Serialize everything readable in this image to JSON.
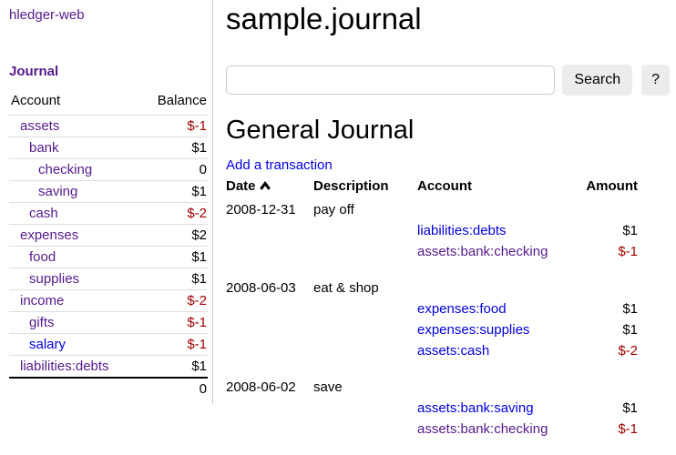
{
  "app": {
    "title": "hledger-web"
  },
  "colors": {
    "link": "#0000dd",
    "link_visited": "#551a8b",
    "negative": "#a00000"
  },
  "sidebar": {
    "journal_label": "Journal",
    "accounts_table": {
      "account_header": "Account",
      "balance_header": "Balance",
      "rows": [
        {
          "name": "assets",
          "indent": 0,
          "balance": "$-1",
          "visited": true
        },
        {
          "name": "bank",
          "indent": 1,
          "balance": "$1",
          "visited": true
        },
        {
          "name": "checking",
          "indent": 2,
          "balance": "0",
          "visited": true
        },
        {
          "name": "saving",
          "indent": 2,
          "balance": "$1",
          "visited": true
        },
        {
          "name": "cash",
          "indent": 1,
          "balance": "$-2",
          "visited": true
        },
        {
          "name": "expenses",
          "indent": 0,
          "balance": "$2",
          "visited": true
        },
        {
          "name": "food",
          "indent": 1,
          "balance": "$1",
          "visited": true
        },
        {
          "name": "supplies",
          "indent": 1,
          "balance": "$1",
          "visited": true
        },
        {
          "name": "income",
          "indent": 0,
          "balance": "$-2",
          "visited": true
        },
        {
          "name": "gifts",
          "indent": 1,
          "balance": "$-1",
          "visited": true
        },
        {
          "name": "salary",
          "indent": 1,
          "balance": "$-1",
          "visited": false
        },
        {
          "name": "liabilities:debts",
          "indent": 0,
          "balance": "$1",
          "visited": true
        }
      ],
      "total": "0"
    }
  },
  "main": {
    "title": "sample.journal",
    "search": {
      "value": "",
      "placeholder": "",
      "button_label": "Search",
      "help_label": "?"
    },
    "journal": {
      "heading": "General Journal",
      "add_link_label": "Add a transaction",
      "table_headers": {
        "date": "Date",
        "description": "Description",
        "account": "Account",
        "amount": "Amount"
      },
      "sort_icon": "chevron-up",
      "transactions": [
        {
          "date": "2008-12-31",
          "description": "pay off",
          "postings": [
            {
              "account": "liabilities:debts",
              "amount": "$1",
              "visited": false
            },
            {
              "account": "assets:bank:checking",
              "amount": "$-1",
              "visited": true
            }
          ]
        },
        {
          "date": "2008-06-03",
          "description": "eat & shop",
          "postings": [
            {
              "account": "expenses:food",
              "amount": "$1",
              "visited": false
            },
            {
              "account": "expenses:supplies",
              "amount": "$1",
              "visited": false
            },
            {
              "account": "assets:cash",
              "amount": "$-2",
              "visited": false
            }
          ]
        },
        {
          "date": "2008-06-02",
          "description": "save",
          "postings": [
            {
              "account": "assets:bank:saving",
              "amount": "$1",
              "visited": false
            },
            {
              "account": "assets:bank:checking",
              "amount": "$-1",
              "visited": true
            }
          ]
        }
      ]
    }
  }
}
